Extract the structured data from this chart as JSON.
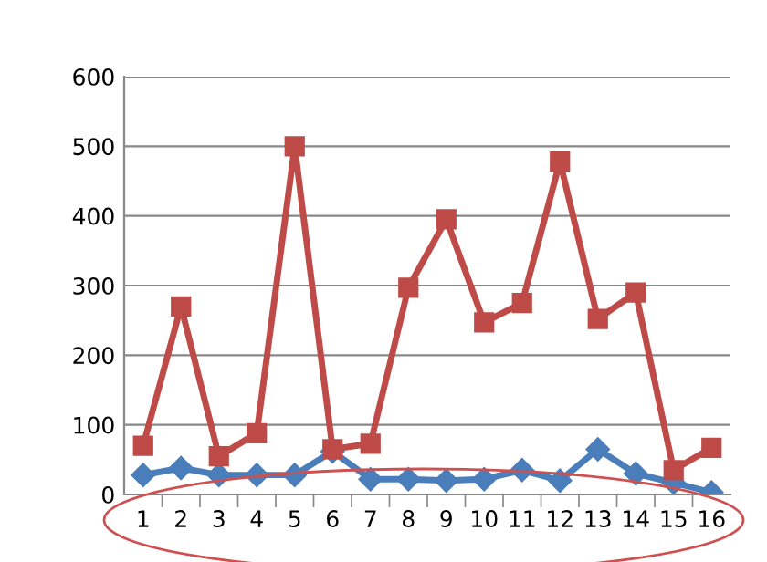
{
  "chart_data": {
    "type": "line",
    "categories": [
      "1",
      "2",
      "3",
      "4",
      "5",
      "6",
      "7",
      "8",
      "9",
      "10",
      "11",
      "12",
      "13",
      "14",
      "15",
      "16"
    ],
    "series": [
      {
        "color": "#be4b48",
        "marker": "square",
        "values": [
          70,
          270,
          55,
          88,
          500,
          65,
          73,
          297,
          395,
          247,
          275,
          478,
          252,
          290,
          35,
          67
        ]
      },
      {
        "color": "#4a7ebb",
        "marker": "diamond",
        "values": [
          28,
          38,
          28,
          28,
          28,
          62,
          22,
          22,
          20,
          22,
          35,
          20,
          65,
          30,
          17,
          3
        ]
      }
    ],
    "ylim": [
      0,
      600
    ],
    "yticks": [
      0,
      100,
      200,
      300,
      400,
      500,
      600
    ],
    "grid": "y",
    "legend": false,
    "line_style": "solid"
  }
}
